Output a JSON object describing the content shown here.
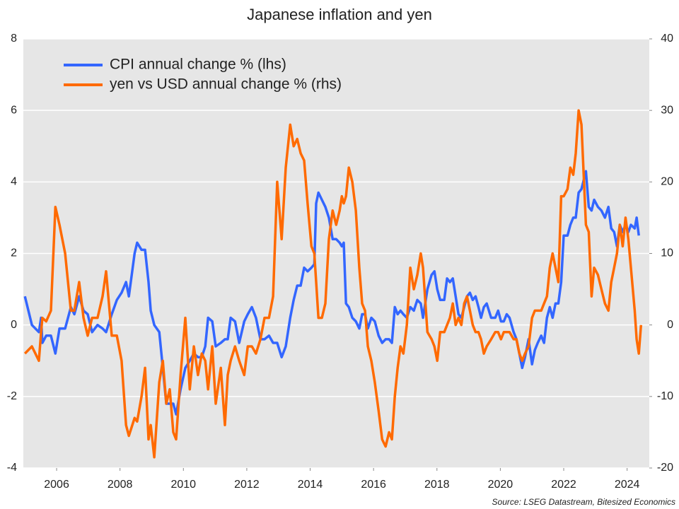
{
  "chart_data": {
    "type": "line",
    "title": "Japanese inflation and yen",
    "source": "Source: LSEG Datastream, Bitesized Economics",
    "legend": "top-left",
    "grid": true,
    "xlim": [
      2004.95,
      2024.7
    ],
    "xticks": [
      2006,
      2008,
      2010,
      2012,
      2014,
      2016,
      2018,
      2020,
      2022,
      2024
    ],
    "ylim": [
      -4,
      8
    ],
    "yticks": [
      -4,
      -2,
      0,
      2,
      4,
      6,
      8
    ],
    "y2lim": [
      -20,
      40
    ],
    "y2ticks": [
      -20,
      -10,
      0,
      10,
      20,
      30,
      40
    ],
    "x": [
      2005.0,
      2005.22,
      2005.44,
      2005.51,
      2005.55,
      2005.67,
      2005.82,
      2005.96,
      2006.09,
      2006.27,
      2006.45,
      2006.56,
      2006.71,
      2006.85,
      2006.98,
      2007.12,
      2007.29,
      2007.45,
      2007.56,
      2007.74,
      2007.9,
      2008.05,
      2008.19,
      2008.28,
      2008.46,
      2008.54,
      2008.68,
      2008.79,
      2008.9,
      2008.97,
      2009.08,
      2009.24,
      2009.35,
      2009.46,
      2009.57,
      2009.68,
      2009.77,
      2009.91,
      2010.06,
      2010.2,
      2010.33,
      2010.46,
      2010.58,
      2010.69,
      2010.78,
      2010.91,
      2011.02,
      2011.18,
      2011.31,
      2011.4,
      2011.49,
      2011.63,
      2011.76,
      2011.92,
      2012.03,
      2012.16,
      2012.29,
      2012.43,
      2012.56,
      2012.7,
      2012.83,
      2012.96,
      2013.1,
      2013.23,
      2013.37,
      2013.48,
      2013.59,
      2013.7,
      2013.81,
      2013.92,
      2014.04,
      2014.13,
      2014.19,
      2014.26,
      2014.37,
      2014.48,
      2014.59,
      2014.71,
      2014.82,
      2014.93,
      2015,
      2015.06,
      2015.13,
      2015.22,
      2015.33,
      2015.44,
      2015.55,
      2015.64,
      2015.73,
      2015.82,
      2015.93,
      2016.04,
      2016.16,
      2016.27,
      2016.38,
      2016.49,
      2016.58,
      2016.67,
      2016.76,
      2016.85,
      2016.94,
      2017.05,
      2017.16,
      2017.27,
      2017.38,
      2017.49,
      2017.56,
      2017.7,
      2017.83,
      2017.92,
      2018.01,
      2018.1,
      2018.23,
      2018.32,
      2018.41,
      2018.5,
      2018.59,
      2018.68,
      2018.77,
      2018.86,
      2018.95,
      2019.04,
      2019.13,
      2019.22,
      2019.31,
      2019.39,
      2019.48,
      2019.57,
      2019.71,
      2019.84,
      2019.93,
      2020.02,
      2020.11,
      2020.2,
      2020.29,
      2020.42,
      2020.51,
      2020.6,
      2020.69,
      2020.78,
      2020.89,
      2021,
      2021.09,
      2021.18,
      2021.29,
      2021.38,
      2021.47,
      2021.56,
      2021.65,
      2021.74,
      2021.83,
      2021.92,
      2022,
      2022.12,
      2022.21,
      2022.3,
      2022.38,
      2022.47,
      2022.56,
      2022.7,
      2022.79,
      2022.88,
      2022.96,
      2023.08,
      2023.19,
      2023.3,
      2023.41,
      2023.5,
      2023.59,
      2023.68,
      2023.77,
      2023.86,
      2023.95,
      2024.04,
      2024.12,
      2024.24,
      2024.3,
      2024.37,
      2024.44
    ],
    "series": [
      {
        "name": "CPI annual change % (lhs)",
        "color": "#3366ff",
        "axis": "y",
        "values": [
          0.8,
          0,
          -0.2,
          0.2,
          -0.5,
          -0.3,
          -0.3,
          -0.8,
          -0.1,
          -0.1,
          0.5,
          0.3,
          0.8,
          0.4,
          0.3,
          -0.2,
          0,
          -0.1,
          -0.2,
          0.3,
          0.7,
          0.9,
          1.2,
          0.8,
          2.0,
          2.3,
          2.1,
          2.1,
          1.2,
          0.4,
          0,
          -0.2,
          -1.2,
          -2.2,
          -2.2,
          -2.2,
          -2.5,
          -1.8,
          -1.2,
          -1.0,
          -0.8,
          -0.9,
          -0.9,
          -0.6,
          0.2,
          0.1,
          -0.6,
          -0.5,
          -0.4,
          -0.4,
          0.2,
          0.1,
          -0.5,
          0.1,
          0.3,
          0.5,
          0.2,
          -0.4,
          -0.4,
          -0.3,
          -0.5,
          -0.5,
          -0.9,
          -0.6,
          0.2,
          0.7,
          1.1,
          1.1,
          1.6,
          1.5,
          1.6,
          1.7,
          3.4,
          3.7,
          3.5,
          3.3,
          3.0,
          2.4,
          2.4,
          2.3,
          2.2,
          2.3,
          0.6,
          0.5,
          0.2,
          0.1,
          -0.1,
          0.3,
          0.3,
          -0.1,
          0.2,
          0.1,
          -0.3,
          -0.5,
          -0.4,
          -0.4,
          -0.5,
          0.5,
          0.3,
          0.4,
          0.3,
          0.2,
          0.5,
          0.4,
          0.7,
          0.6,
          0.2,
          1.0,
          1.4,
          1.5,
          1.0,
          0.7,
          0.7,
          1.3,
          1.2,
          1.3,
          0.8,
          0.3,
          0.2,
          0.5,
          0.8,
          0.9,
          0.7,
          0.8,
          0.5,
          0.2,
          0.5,
          0.6,
          0.2,
          0.2,
          0.4,
          0.1,
          0.1,
          0.3,
          0.2,
          -0.2,
          -0.4,
          -0.8,
          -1.2,
          -0.9,
          -0.4,
          -1.1,
          -0.7,
          -0.5,
          -0.3,
          -0.5,
          0.2,
          0.5,
          0.2,
          0.6,
          0.6,
          1.2,
          2.5,
          2.5,
          2.8,
          3.0,
          3.0,
          3.7,
          3.8,
          4.3,
          3.3,
          3.2,
          3.5,
          3.3,
          3.2,
          3.0,
          3.3,
          2.7,
          2.6,
          2.2,
          2.8,
          2.6,
          2.8,
          2.6,
          2.8,
          2.7,
          3.0,
          2.5,
          null
        ]
      },
      {
        "name": "yen vs USD annual change % (rhs)",
        "color": "#ff6a00",
        "axis": "y2",
        "values": [
          -4,
          -3,
          -5,
          -1,
          1,
          0.5,
          2,
          16.5,
          14,
          10,
          2,
          2,
          6,
          1,
          -1.5,
          1,
          1,
          4,
          7.5,
          -1.5,
          -1.5,
          -5,
          -14,
          -15.5,
          -13,
          -13.5,
          -10,
          -6,
          -16,
          -14,
          -18.5,
          -8,
          -5,
          -11,
          -9,
          -15,
          -16,
          -7,
          1,
          -9,
          -3,
          -7,
          -4,
          -5,
          -9,
          -3,
          -11,
          -6,
          -14,
          -7,
          -5,
          -3,
          -5,
          -7,
          -3,
          -3,
          -4,
          -2,
          1,
          1,
          4,
          20,
          12,
          22,
          28,
          25,
          26,
          24,
          23,
          17,
          11,
          10,
          6,
          1,
          1,
          3,
          12,
          16,
          14,
          16,
          18,
          17,
          18,
          22,
          20,
          16,
          8,
          3,
          2,
          -3,
          -5,
          -8,
          -12,
          -16,
          -17,
          -15,
          -16,
          -10,
          -6,
          -3,
          -4,
          0,
          8,
          5,
          7,
          10,
          8,
          -1,
          -2,
          -3,
          -5,
          -1,
          -1,
          0,
          1,
          3,
          0,
          1,
          0,
          3,
          4,
          2,
          0,
          -1,
          -1,
          -2,
          -4,
          -3,
          -2,
          -1,
          -1,
          -2,
          -1,
          -1,
          -1,
          -2,
          -2,
          -4,
          -5,
          -4,
          -3,
          1,
          2,
          2,
          2,
          3,
          4,
          8,
          10,
          8,
          6,
          18,
          18,
          19,
          22,
          21,
          24,
          30,
          28,
          14,
          13,
          4,
          8,
          7,
          5,
          3,
          2,
          6,
          8,
          10,
          14,
          11,
          15,
          12,
          8,
          2,
          -2,
          -4,
          0
        ]
      }
    ]
  }
}
